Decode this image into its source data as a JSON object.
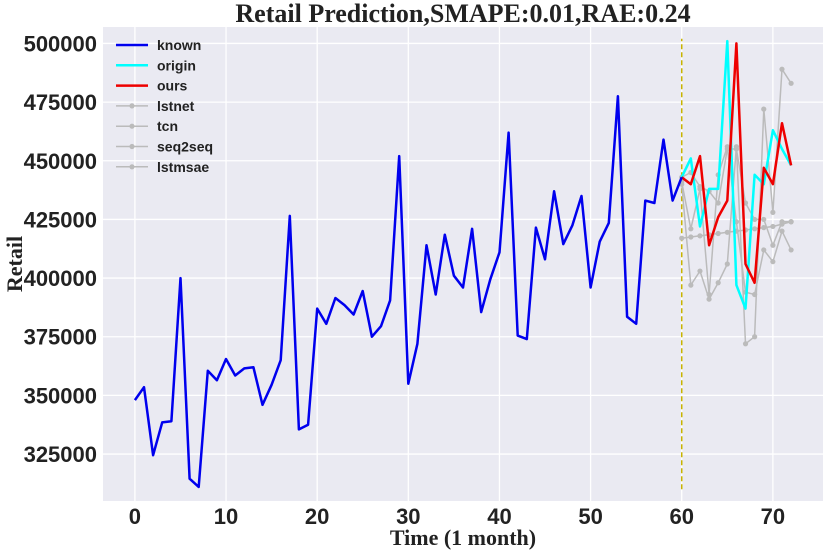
{
  "chart_data": {
    "type": "line",
    "title": "Retail Prediction,SMAPE:0.01,RAE:0.24",
    "xlabel": "Time (1 month)",
    "ylabel": "Retail",
    "xlim": [
      -3.5,
      75.5
    ],
    "ylim": [
      305000,
      507000
    ],
    "xticks": [
      0,
      10,
      20,
      30,
      40,
      50,
      60,
      70
    ],
    "yticks": [
      325000,
      350000,
      375000,
      400000,
      425000,
      450000,
      475000,
      500000
    ],
    "grid": true,
    "legend_position": "top-left",
    "vline": {
      "x": 60,
      "y_range": [
        310000,
        502000
      ],
      "color": "#c8b400"
    },
    "series": [
      {
        "name": "known",
        "color": "#0000ee",
        "width": 2.5,
        "marker": false,
        "x": [
          0,
          1,
          2,
          3,
          4,
          5,
          6,
          7,
          8,
          9,
          10,
          11,
          12,
          13,
          14,
          15,
          16,
          17,
          18,
          19,
          20,
          21,
          22,
          23,
          24,
          25,
          26,
          27,
          28,
          29,
          30,
          31,
          32,
          33,
          34,
          35,
          36,
          37,
          38,
          39,
          40,
          41,
          42,
          43,
          44,
          45,
          46,
          47,
          48,
          49,
          50,
          51,
          52,
          53,
          54,
          55,
          56,
          57,
          58,
          59,
          60
        ],
        "values": [
          348000,
          353500,
          324500,
          338500,
          339000,
          400000,
          314500,
          311000,
          360500,
          356500,
          365500,
          358500,
          361500,
          362000,
          346000,
          354500,
          365000,
          426500,
          335500,
          337500,
          387000,
          380500,
          391500,
          388500,
          384500,
          394500,
          375000,
          379500,
          390500,
          452000,
          355000,
          372000,
          414000,
          393000,
          418500,
          401000,
          396000,
          421000,
          385500,
          399500,
          411000,
          462000,
          375500,
          374000,
          421500,
          408000,
          437000,
          414500,
          422500,
          435000,
          396000,
          415500,
          423500,
          477500,
          383500,
          380500,
          433000,
          432000,
          459000,
          433000,
          443000
        ]
      },
      {
        "name": "origin",
        "color": "#00ffff",
        "width": 2.5,
        "marker": false,
        "x": [
          60,
          61,
          62,
          63,
          64,
          65,
          66,
          67,
          68,
          69,
          70,
          71,
          72
        ],
        "values": [
          443000,
          451000,
          422000,
          438000,
          438000,
          501000,
          397000,
          387000,
          444000,
          440000,
          463000,
          455000,
          448000
        ]
      },
      {
        "name": "ours",
        "color": "#ee0000",
        "width": 2.5,
        "marker": false,
        "x": [
          60,
          61,
          62,
          63,
          64,
          65,
          66,
          67,
          68,
          69,
          70,
          71,
          72
        ],
        "values": [
          443000,
          440000,
          452000,
          414000,
          426000,
          433000,
          500000,
          406000,
          398000,
          447000,
          440000,
          466000,
          448000
        ]
      },
      {
        "name": "lstnet",
        "color": "#bbbbbb",
        "width": 1.5,
        "marker": true,
        "x": [
          60,
          61,
          62,
          63,
          64,
          65,
          66,
          67,
          68,
          69,
          70,
          71,
          72
        ],
        "values": [
          440000,
          397000,
          403000,
          391000,
          398000,
          406000,
          456000,
          372000,
          375000,
          472000,
          428000,
          489000,
          483000
        ]
      },
      {
        "name": "tcn",
        "color": "#bbbbbb",
        "width": 1.5,
        "marker": true,
        "x": [
          60,
          61,
          62,
          63,
          64,
          65,
          66,
          67,
          68,
          69,
          70,
          71,
          72
        ],
        "values": [
          441000,
          421000,
          438000,
          393000,
          444000,
          456000,
          424000,
          394000,
          393000,
          412000,
          407000,
          420000,
          412000
        ]
      },
      {
        "name": "seq2seq",
        "color": "#bbbbbb",
        "width": 1.5,
        "marker": true,
        "x": [
          60,
          61,
          62,
          63,
          64,
          65,
          66,
          67,
          68,
          69,
          70,
          71,
          72
        ],
        "values": [
          417000,
          417500,
          418000,
          418500,
          419000,
          419500,
          420000,
          420500,
          421000,
          421500,
          422000,
          423000,
          424000
        ]
      },
      {
        "name": "lstmsae",
        "color": "#bbbbbb",
        "width": 1.5,
        "marker": true,
        "x": [
          60,
          61,
          62,
          63,
          64,
          65,
          66,
          67,
          68,
          69,
          70,
          71,
          72
        ],
        "values": [
          443000,
          445000,
          439000,
          437000,
          432000,
          455000,
          455000,
          432000,
          425000,
          425000,
          414000,
          424000,
          424000
        ]
      }
    ]
  }
}
